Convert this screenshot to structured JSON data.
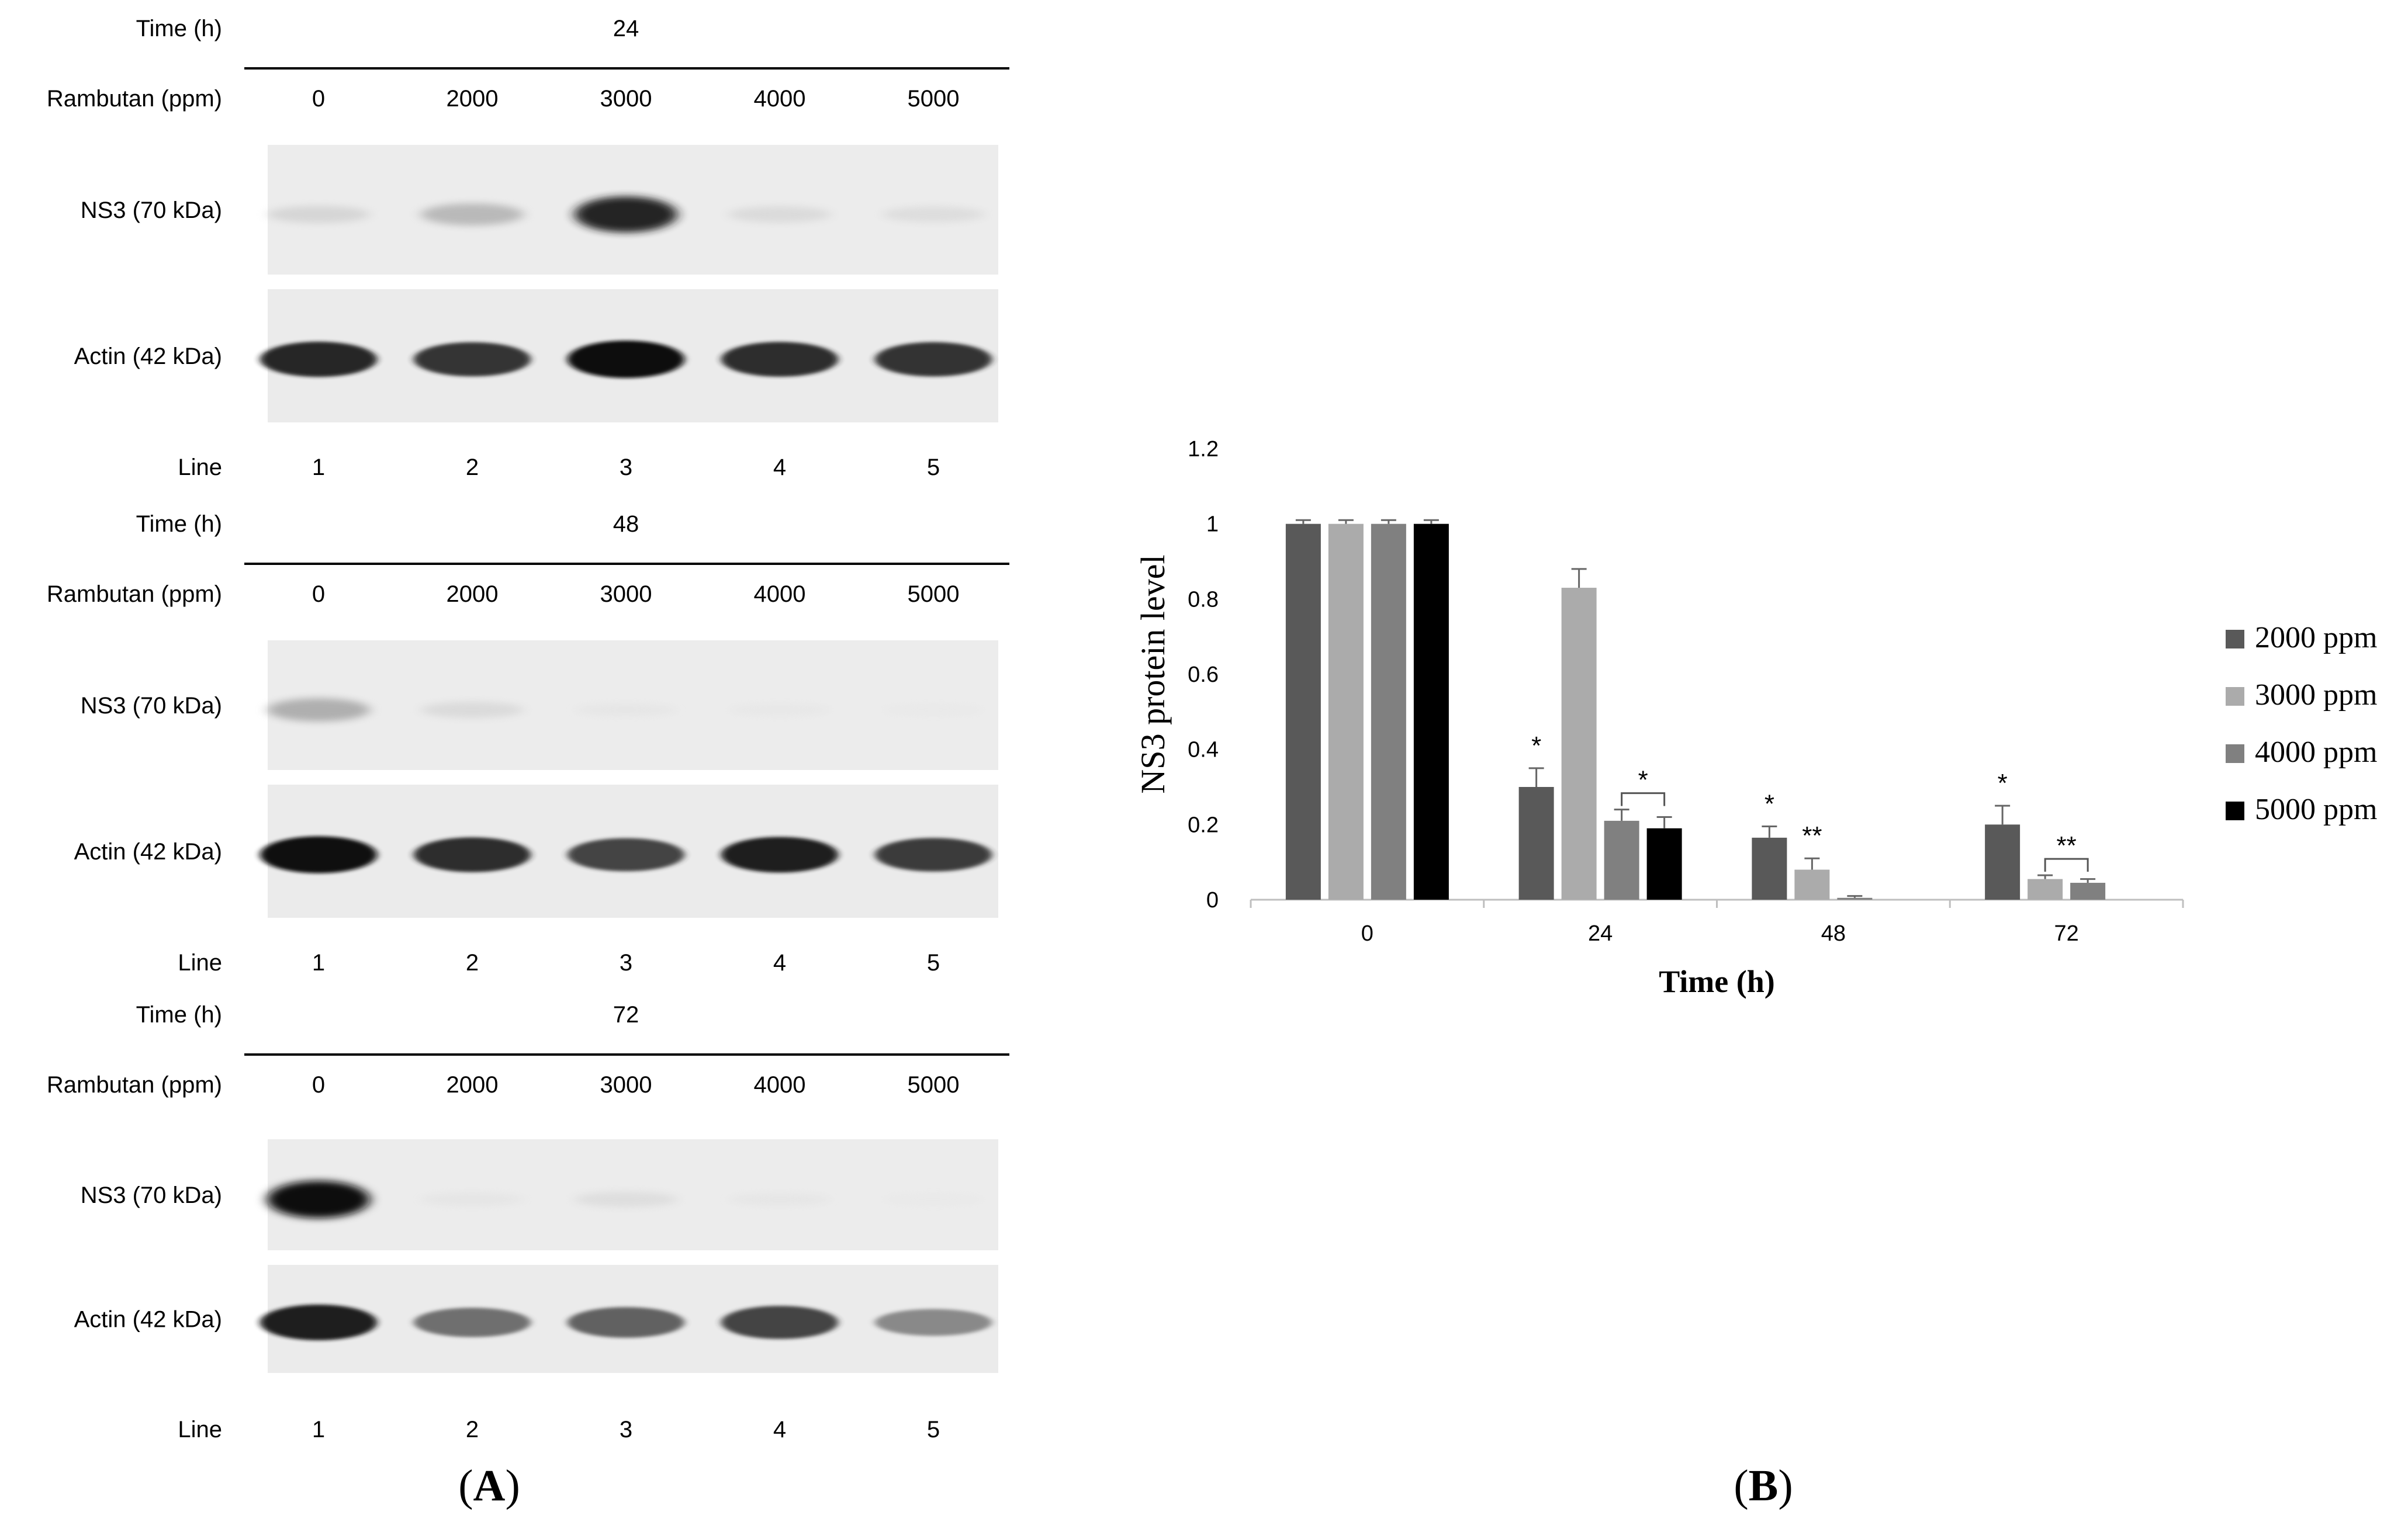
{
  "panel_a": {
    "caption": "A",
    "row_labels": {
      "time": "Time (h)",
      "rambutan": "Rambutan (ppm)",
      "ns3": "NS3 (70 kDa)",
      "actin": "Actin (42 kDa)",
      "line": "Line"
    },
    "concentrations": [
      "0",
      "2000",
      "3000",
      "4000",
      "5000"
    ],
    "lanes": [
      "1",
      "2",
      "3",
      "4",
      "5"
    ],
    "blocks": [
      {
        "time": "24",
        "ns3_intensity": [
          0.22,
          0.4,
          0.95,
          0.18,
          0.16
        ],
        "actin_intensity": [
          0.9,
          0.85,
          1.0,
          0.88,
          0.86
        ]
      },
      {
        "time": "48",
        "ns3_intensity": [
          0.45,
          0.18,
          0.06,
          0.04,
          0.02
        ],
        "actin_intensity": [
          0.98,
          0.88,
          0.8,
          0.92,
          0.82
        ]
      },
      {
        "time": "72",
        "ns3_intensity": [
          1.0,
          0.07,
          0.15,
          0.06,
          0.02
        ],
        "actin_intensity": [
          0.92,
          0.62,
          0.68,
          0.8,
          0.5
        ]
      }
    ]
  },
  "chart_data": {
    "type": "bar",
    "caption": "B",
    "categories": [
      "0",
      "24",
      "48",
      "72"
    ],
    "xlabel": "Time (h)",
    "ylabel": "NS3 protein level",
    "ylim": [
      0,
      1.2
    ],
    "yticks": [
      "0",
      "0.2",
      "0.4",
      "0.6",
      "0.8",
      "1",
      "1.2"
    ],
    "legend": "right",
    "series": [
      {
        "name": "2000 ppm",
        "color": "#595959",
        "values": [
          1.0,
          0.3,
          0.165,
          0.2
        ],
        "errors": [
          0.01,
          0.05,
          0.03,
          0.05
        ]
      },
      {
        "name": "3000 ppm",
        "color": "#ababab",
        "values": [
          1.0,
          0.83,
          0.08,
          0.055
        ],
        "errors": [
          0.01,
          0.05,
          0.03,
          0.01
        ]
      },
      {
        "name": "4000 ppm",
        "color": "#808080",
        "values": [
          1.0,
          0.21,
          0.005,
          0.045
        ],
        "errors": [
          0.01,
          0.03,
          0.005,
          0.01
        ]
      },
      {
        "name": "5000 ppm",
        "color": "#000000",
        "values": [
          1.0,
          0.19,
          null,
          null
        ],
        "errors": [
          0.01,
          0.03,
          null,
          null
        ]
      }
    ],
    "annotations": [
      {
        "text": "*",
        "category": 1,
        "series": 0
      },
      {
        "text": "*",
        "category": 1,
        "bracket": [
          2,
          3
        ]
      },
      {
        "text": "*",
        "category": 2,
        "series": 0
      },
      {
        "text": "**",
        "category": 2,
        "series": 1
      },
      {
        "text": "*",
        "category": 3,
        "series": 0
      },
      {
        "text": "**",
        "category": 3,
        "bracket": [
          1,
          2
        ]
      }
    ]
  }
}
